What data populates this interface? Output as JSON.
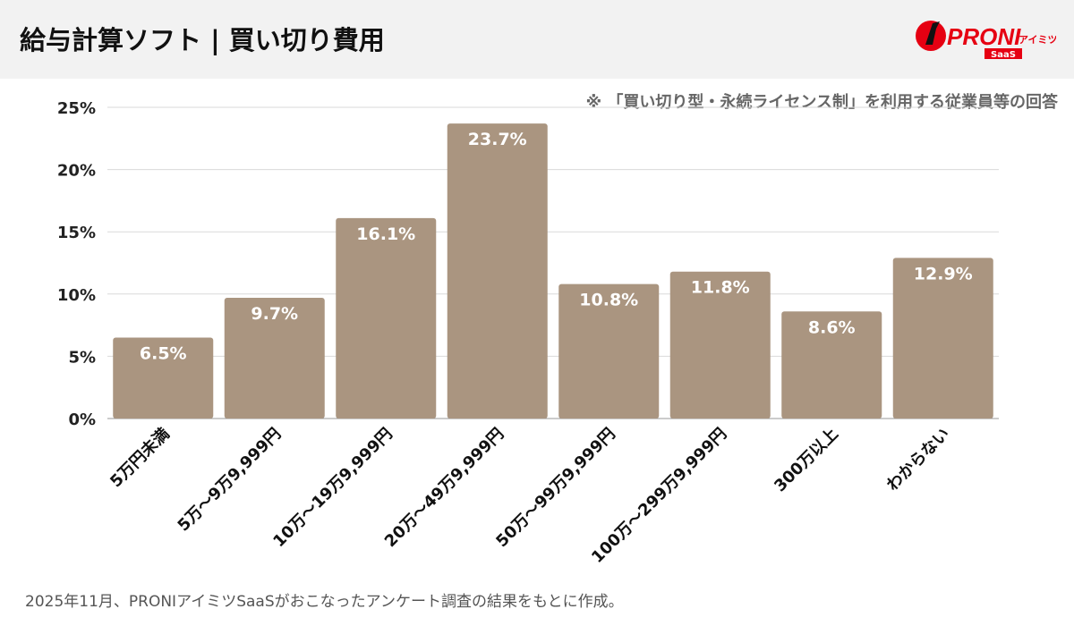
{
  "header": {
    "title": "給与計算ソフト | 買い切り費用",
    "logo_text": "PRONI",
    "logo_sub": "アイミツ",
    "logo_badge": "SaaS"
  },
  "note": "※ 「買い切り型・永続ライセンス制」を利用する従業員等の回答",
  "footer": "2025年11月、PRONIアイミツSaaSがおこなったアンケート調査の結果をもとに作成。",
  "colors": {
    "bar": "#aa9580",
    "logo": "#e60012"
  },
  "chart_data": {
    "type": "bar",
    "categories": [
      "5万円未満",
      "5万～9万9,999円",
      "10万～19万9,999円",
      "20万～49万9,999円",
      "50万～99万9,999円",
      "100万～299万9,999円",
      "300万以上",
      "わからない"
    ],
    "values": [
      6.5,
      9.7,
      16.1,
      23.7,
      10.8,
      11.8,
      8.6,
      12.9
    ],
    "data_labels": [
      "6.5%",
      "9.7%",
      "16.1%",
      "23.7%",
      "10.8%",
      "11.8%",
      "8.6%",
      "12.9%"
    ],
    "yticks": [
      "0%",
      "5%",
      "10%",
      "15%",
      "20%",
      "25%"
    ],
    "ylim": [
      0,
      25
    ],
    "grid": true
  }
}
